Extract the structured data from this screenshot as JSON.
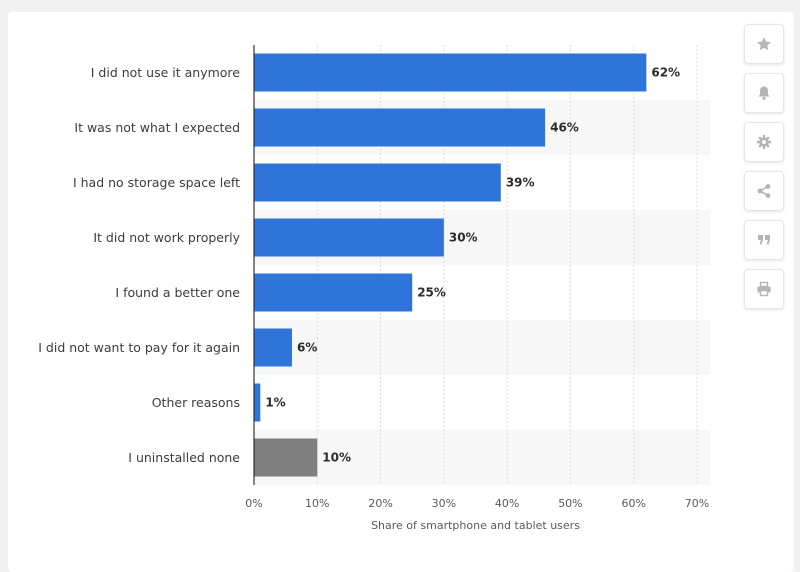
{
  "chart_data": {
    "type": "bar",
    "orientation": "horizontal",
    "categories": [
      "I did not use it anymore",
      "It was not what I expected",
      "I had no storage space left",
      "It did not work properly",
      "I found a better one",
      "I did not want to pay for it again",
      "Other reasons",
      "I uninstalled none"
    ],
    "values": [
      62,
      46,
      39,
      30,
      25,
      6,
      1,
      10
    ],
    "value_labels": [
      "62%",
      "46%",
      "39%",
      "30%",
      "25%",
      "6%",
      "1%",
      "10%"
    ],
    "bar_colors": [
      "#2f74d8",
      "#2f74d8",
      "#2f74d8",
      "#2f74d8",
      "#2f74d8",
      "#2f74d8",
      "#2f74d8",
      "#7f7f7f"
    ],
    "xlabel": "Share of smartphone and tablet users",
    "xlim": [
      0,
      70
    ],
    "xticks": [
      0,
      10,
      20,
      30,
      40,
      50,
      60,
      70
    ],
    "xtick_labels": [
      "0%",
      "10%",
      "20%",
      "30%",
      "40%",
      "50%",
      "60%",
      "70%"
    ],
    "grid": true,
    "row_stripes": true
  },
  "sidebar": {
    "buttons": [
      {
        "name": "star-icon"
      },
      {
        "name": "bell-icon"
      },
      {
        "name": "gear-icon"
      },
      {
        "name": "share-icon"
      },
      {
        "name": "quote-icon"
      },
      {
        "name": "print-icon"
      }
    ]
  },
  "colors": {
    "primary": "#2f74d8",
    "secondary": "#7f7f7f",
    "stripe": "#f7f7f7",
    "icon": "#b5b5b5"
  }
}
